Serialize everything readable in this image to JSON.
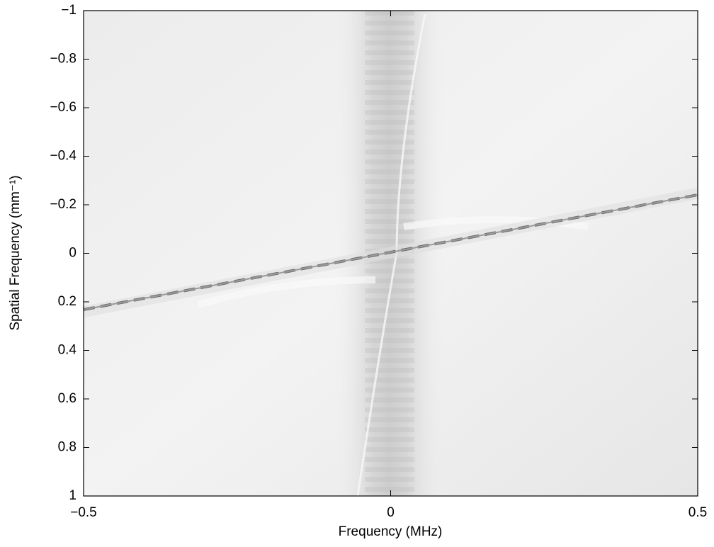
{
  "chart_data": {
    "type": "heatmap",
    "xlabel": "Frequency (MHz)",
    "ylabel": "Spatial Frequency (mm⁻¹)",
    "xlim": [
      -0.5,
      0.5
    ],
    "xticks": [
      {
        "value": -0.5,
        "label": "−0.5"
      },
      0,
      0.5
    ],
    "ylim": [
      -1,
      1
    ],
    "y_inverted": true,
    "yticks": [
      {
        "value": -1,
        "label": "−1"
      },
      {
        "value": -0.8,
        "label": "−0.8"
      },
      {
        "value": -0.6,
        "label": "−0.6"
      },
      {
        "value": -0.4,
        "label": "−0.4"
      },
      {
        "value": -0.2,
        "label": "−0.2"
      },
      0,
      0.2,
      0.4,
      0.6,
      0.8,
      1
    ],
    "colormap": "gray"
  }
}
